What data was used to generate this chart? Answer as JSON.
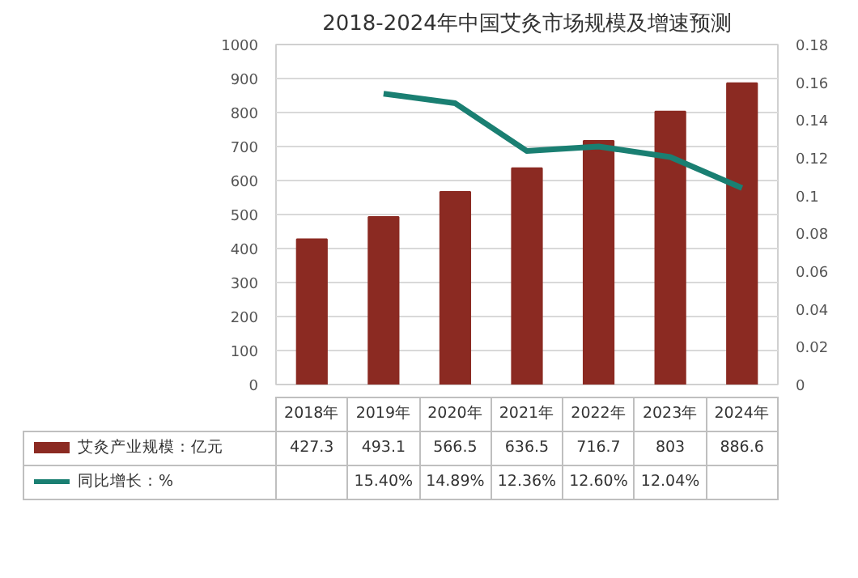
{
  "chart_data": {
    "type": "bar",
    "title": "2018-2024年中国艾灸市场规模及增速预测",
    "categories": [
      "2018年",
      "2019年",
      "2020年",
      "2021年",
      "2022年",
      "2023年",
      "2024年"
    ],
    "series": [
      {
        "name": "艾灸产业规模：亿元",
        "color": "#8b2a22",
        "values": [
          427.3,
          493.1,
          566.5,
          636.5,
          716.7,
          803,
          886.6
        ],
        "value_labels": [
          "427.3",
          "493.1",
          "566.5",
          "636.5",
          "716.7",
          "803",
          "886.6"
        ]
      },
      {
        "name": "同比增长：%",
        "type": "line",
        "axis": "y2",
        "color": "#1a7f72",
        "values": [
          null,
          0.154,
          0.1489,
          0.1236,
          0.126,
          0.1204,
          0.104
        ],
        "value_labels": [
          null,
          "15.40%",
          "14.89%",
          "12.36%",
          "12.60%",
          "12.04%",
          null
        ]
      }
    ],
    "ylim": [
      0,
      1000
    ],
    "yticks": [
      0,
      100,
      200,
      300,
      400,
      500,
      600,
      700,
      800,
      900,
      1000
    ],
    "y2lim": [
      0,
      0.18
    ],
    "y2ticks": [
      0,
      0.02,
      0.04,
      0.06,
      0.08,
      0.1,
      0.12,
      0.14,
      0.16,
      0.18
    ],
    "grid": "y",
    "legend": "bottom",
    "line_style": "solid",
    "marker": "none"
  }
}
